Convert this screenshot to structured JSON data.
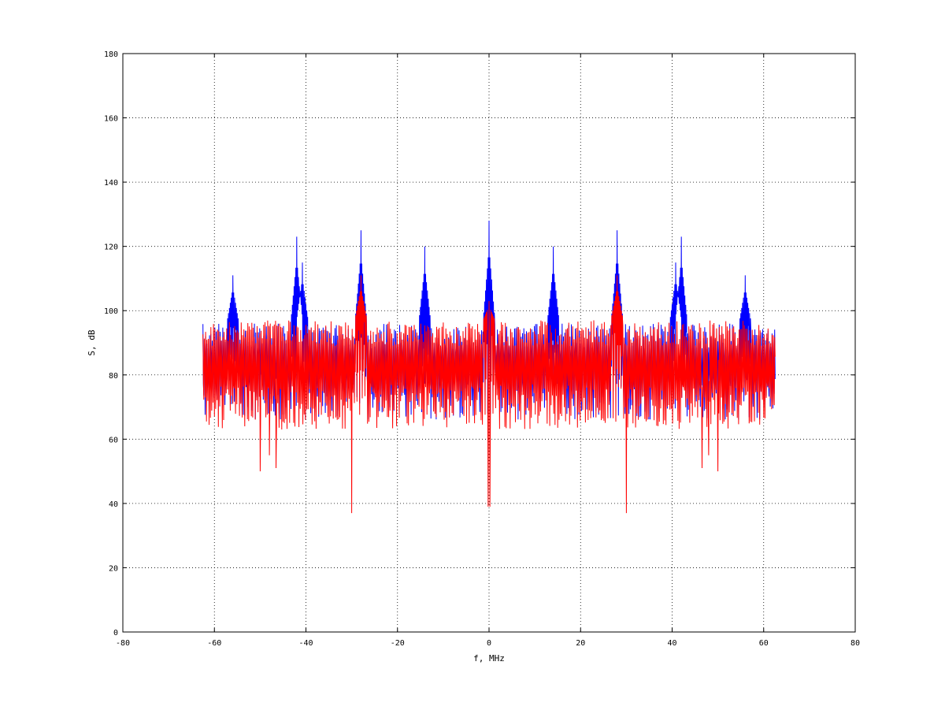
{
  "chart_data": {
    "type": "line",
    "title": "",
    "xlabel": "f, MHz",
    "ylabel": "S, dB",
    "xlim": [
      -80,
      80
    ],
    "ylim": [
      0,
      180
    ],
    "xticks": [
      -80,
      -60,
      -40,
      -20,
      0,
      20,
      40,
      60,
      80
    ],
    "yticks": [
      0,
      20,
      40,
      60,
      80,
      100,
      120,
      140,
      160,
      180
    ],
    "grid": true,
    "x_range": [
      -62.5,
      62.5
    ],
    "series": [
      {
        "color": "#0000ff",
        "peaks": [
          {
            "x": -56,
            "y": 111
          },
          {
            "x": -42,
            "y": 123
          },
          {
            "x": -40.8,
            "y": 115
          },
          {
            "x": -28,
            "y": 125
          },
          {
            "x": -14,
            "y": 120
          },
          {
            "x": 0,
            "y": 128
          },
          {
            "x": 14,
            "y": 120
          },
          {
            "x": 28,
            "y": 125
          },
          {
            "x": 40.8,
            "y": 115
          },
          {
            "x": 42,
            "y": 123
          },
          {
            "x": 56,
            "y": 111
          }
        ],
        "baseline": 82,
        "upper_envelope": 96,
        "lower_envelope": 66
      },
      {
        "color": "#ff0000",
        "peaks": [
          {
            "x": -28,
            "y": 111
          },
          {
            "x": 0,
            "y": 103
          },
          {
            "x": 28,
            "y": 111
          }
        ],
        "dips": [
          {
            "x": -50,
            "y": 50
          },
          {
            "x": -48,
            "y": 55
          },
          {
            "x": -46.5,
            "y": 51
          },
          {
            "x": -30,
            "y": 37
          },
          {
            "x": -0.2,
            "y": 39
          },
          {
            "x": 0.2,
            "y": 39
          },
          {
            "x": 30,
            "y": 37
          },
          {
            "x": 46.5,
            "y": 51
          },
          {
            "x": 48,
            "y": 55
          },
          {
            "x": 50,
            "y": 50
          }
        ],
        "baseline": 81,
        "upper_envelope": 97,
        "lower_envelope": 63
      }
    ]
  },
  "colors": {
    "blue_series": "#0000ff",
    "red_series": "#ff0000",
    "grid": "#000000"
  }
}
